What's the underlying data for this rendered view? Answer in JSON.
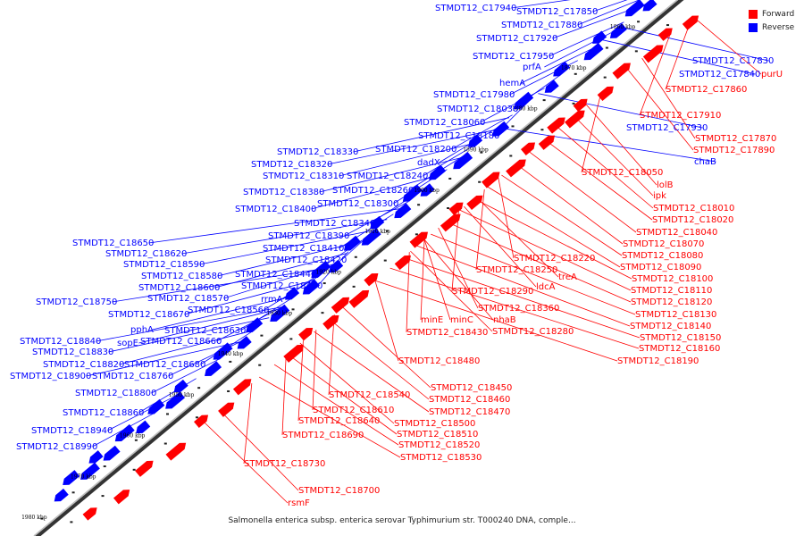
{
  "colors": {
    "forward": "#ff0000",
    "reverse": "#0000ff",
    "backbone": "#555555",
    "tick_label": "#000000"
  },
  "legend": [
    {
      "label": "Forward",
      "color": "#ff0000"
    },
    {
      "label": "Reverse",
      "color": "#0000ff"
    }
  ],
  "caption": "Salmonella enterica subsp. enterica serovar Typhimurium str. T000240 DNA, comple...",
  "tick_labels": [
    "1860 kbp",
    "1870 kbp",
    "1880 kbp",
    "1890 kbp",
    "1900 kbp",
    "1910 kbp",
    "1920 kbp",
    "1930 kbp",
    "1940 kbp",
    "1950 kbp",
    "1960 kbp",
    "1970 kbp",
    "1980 kbp"
  ],
  "reverse_labels": [
    "STMDT12_C17940",
    "STMDT12_C17850",
    "STMDT12_C17880",
    "STMDT12_C17920",
    "STMDT12_C17950",
    "prfA",
    "hemA",
    "STMDT12_C17980",
    "STMDT12_C18030",
    "STMDT12_C18060",
    "STMDT12_C18180",
    "STMDT12_C18200",
    "dadX",
    "STMDT12_C18330",
    "STMDT12_C18320",
    "STMDT12_C18310",
    "STMDT12_C18240",
    "STMDT12_C18260",
    "STMDT12_C18380",
    "STMDT12_C18300",
    "STMDT12_C18400",
    "STMDT12_C18340",
    "STMDT12_C18390",
    "STMDT12_C18410",
    "STMDT12_C18650",
    "STMDT12_C18620",
    "STMDT12_C18420",
    "STMDT12_C18590",
    "STMDT12_C18580",
    "STMDT12_C18440",
    "STMDT12_C18600",
    "STMDT12_C18490",
    "STMDT12_C18750",
    "STMDT12_C18570",
    "rrmA",
    "STMDT12_C18670",
    "STMDT12_C18560",
    "pphA",
    "STMDT12_C18630",
    "sopE",
    "STMDT12_C18660",
    "STMDT12_C18840",
    "STMDT12_C18830",
    "STMDT12_C18820",
    "STMDT12_C18680",
    "STMDT12_C18900",
    "STMDT12_C18760",
    "STMDT12_C18800",
    "STMDT12_C18860",
    "STMDT12_C18940",
    "STMDT12_C18990",
    "STMDT12_C17830",
    "STMDT12_C17840",
    "STMDT12_C17930",
    "chaB"
  ],
  "forward_labels": [
    "purU",
    "STMDT12_C17860",
    "STMDT12_C17910",
    "STMDT12_C17870",
    "STMDT12_C17890",
    "STMDT12_C18050",
    "lolB",
    "ipk",
    "STMDT12_C18010",
    "STMDT12_C18020",
    "STMDT12_C18040",
    "STMDT12_C18070",
    "STMDT12_C18080",
    "STMDT12_C18090",
    "STMDT12_C18100",
    "STMDT12_C18110",
    "STMDT12_C18120",
    "STMDT12_C18130",
    "STMDT12_C18140",
    "STMDT12_C18150",
    "STMDT12_C18160",
    "STMDT12_C18190",
    "STMDT12_C18220",
    "STMDT12_C18250",
    "treA",
    "ldcA",
    "STMDT12_C18290",
    "STMDT12_C18360",
    "minE",
    "minC",
    "nhaB",
    "STMDT12_C18430",
    "STMDT12_C18280",
    "STMDT12_C18480",
    "STMDT12_C18450",
    "STMDT12_C18540",
    "STMDT12_C18460",
    "STMDT12_C18610",
    "STMDT12_C18470",
    "STMDT12_C18640",
    "STMDT12_C18500",
    "STMDT12_C18510",
    "STMDT12_C18690",
    "STMDT12_C18520",
    "STMDT12_C18530",
    "STMDT12_C18730",
    "STMDT12_C18700",
    "rsmF"
  ]
}
